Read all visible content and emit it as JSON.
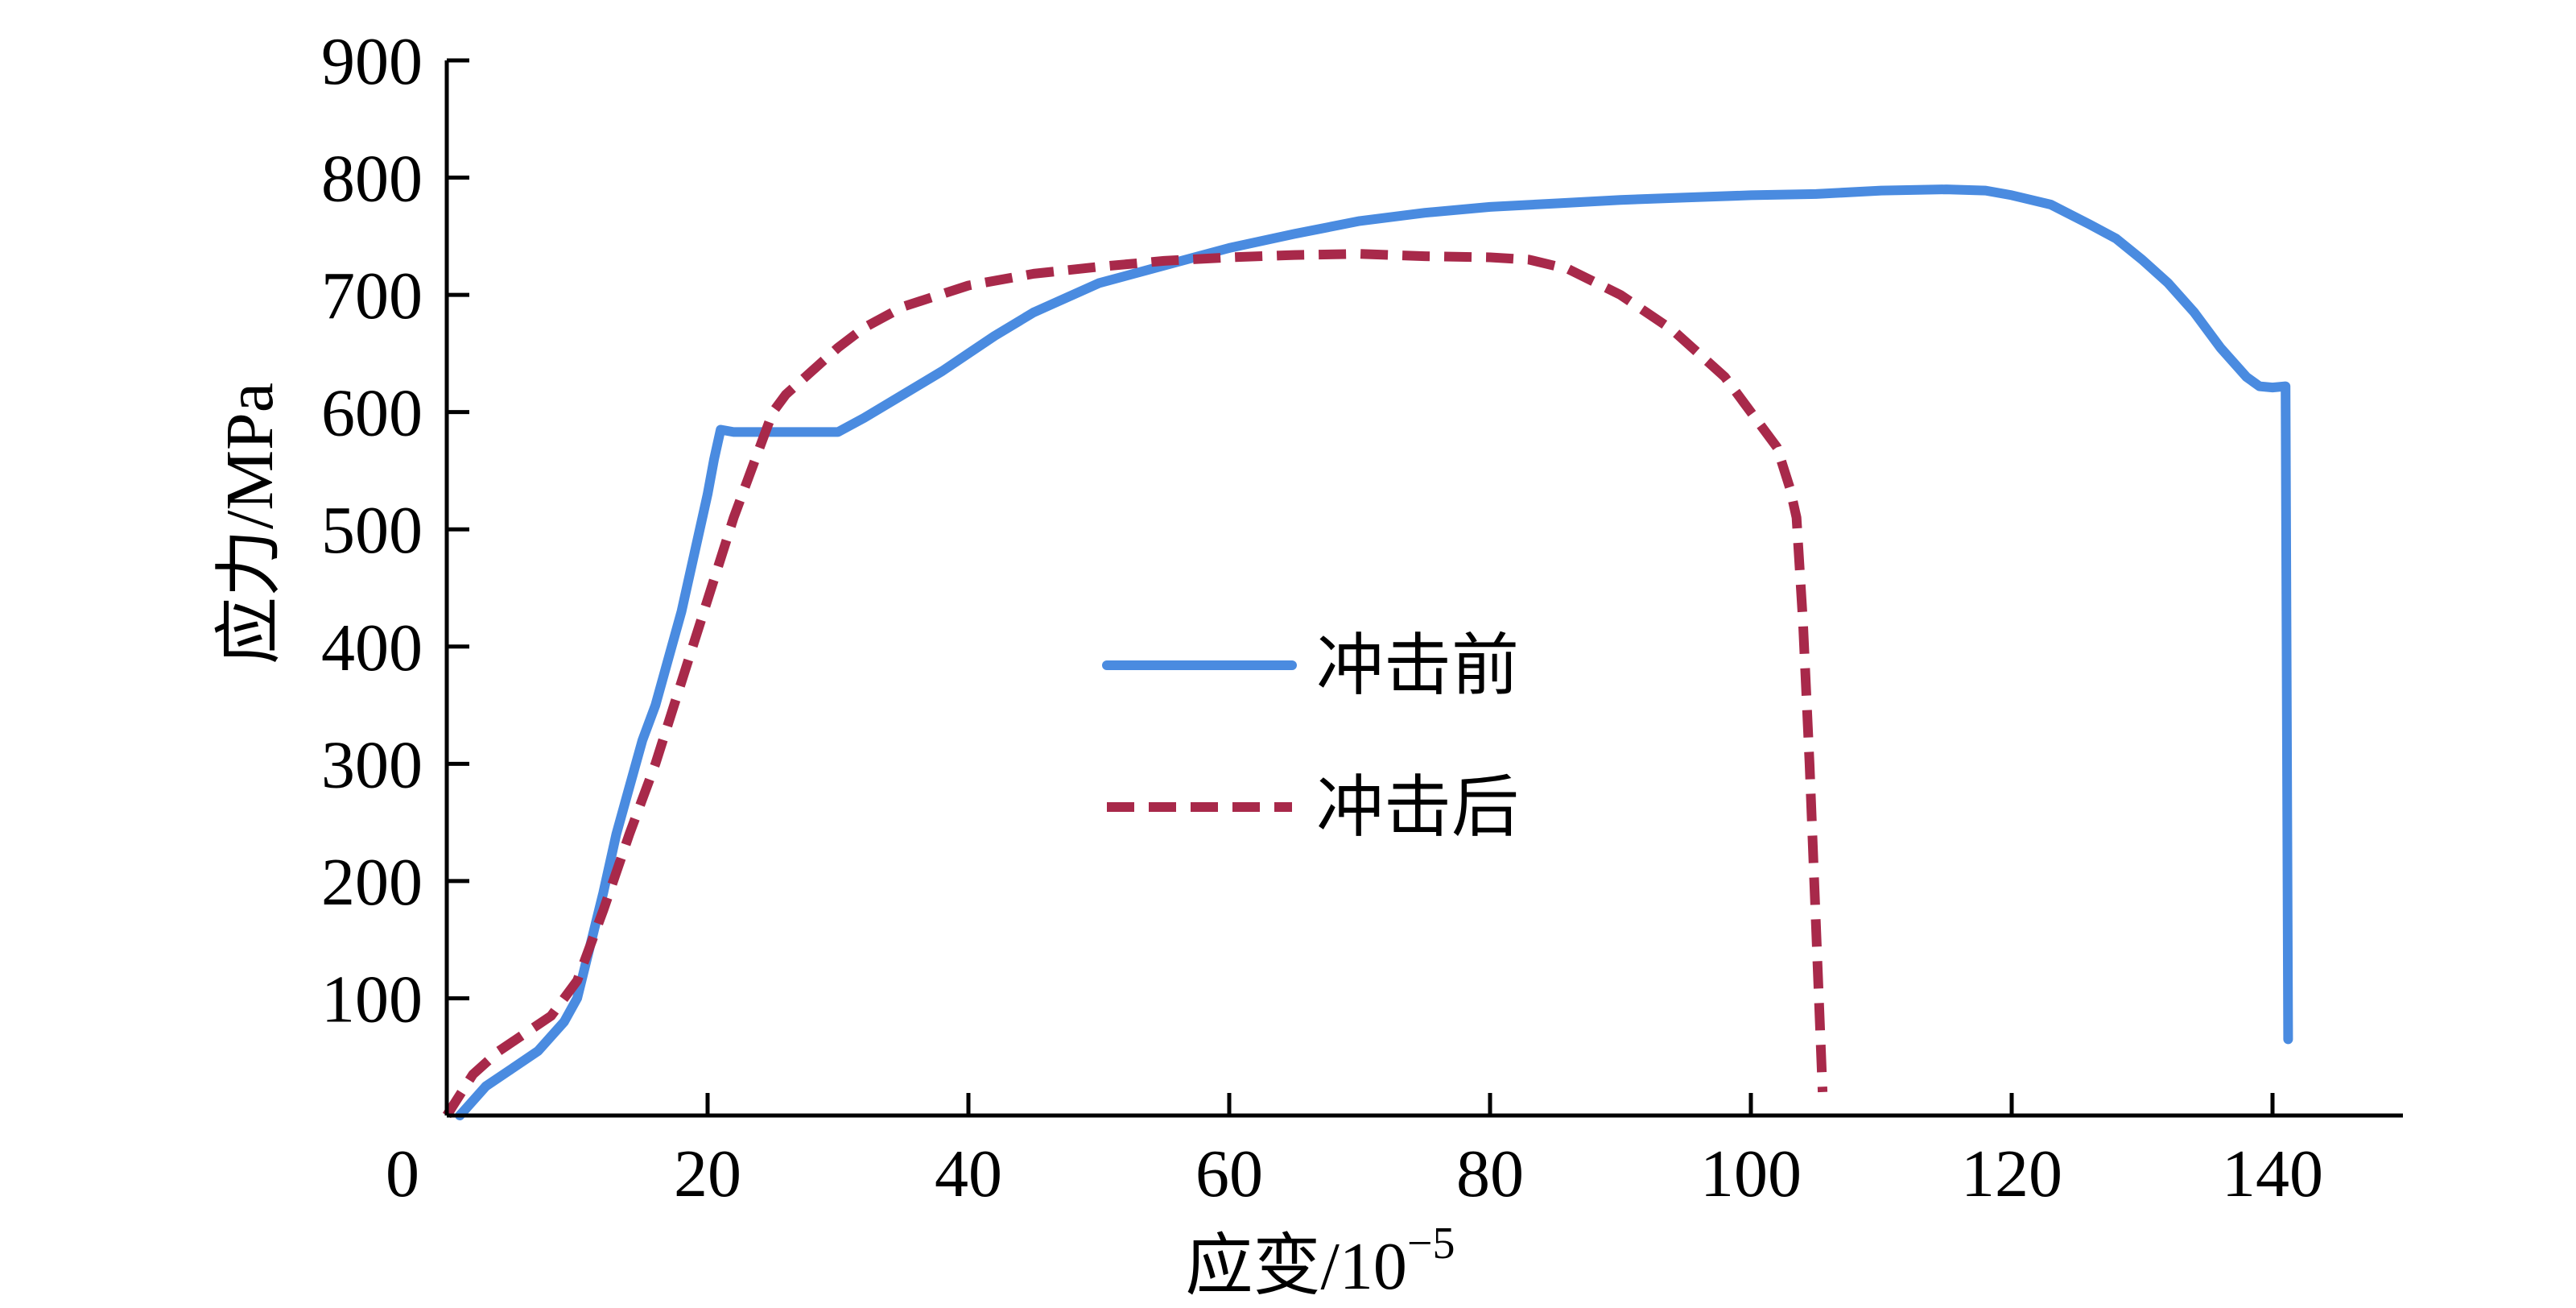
{
  "chart_data": {
    "type": "line",
    "title": "",
    "xlabel": "应变/10",
    "xlabel_exp": "−5",
    "ylabel": "应力/MPa",
    "xlim": [
      0,
      150
    ],
    "ylim": [
      0,
      900
    ],
    "x_ticks": [
      0,
      20,
      40,
      60,
      80,
      100,
      120,
      140
    ],
    "y_ticks": [
      100,
      200,
      300,
      400,
      500,
      600,
      700,
      800,
      900
    ],
    "x_tick_labels": [
      "0",
      "20",
      "40",
      "60",
      "80",
      "100",
      "120",
      "140"
    ],
    "y_tick_labels": [
      "100",
      "200",
      "300",
      "400",
      "500",
      "600",
      "700",
      "800",
      "900"
    ],
    "grid": false,
    "legend_position": "center",
    "series": [
      {
        "name": "冲击前",
        "color": "#4A8BE0",
        "dash": "solid",
        "points": [
          [
            1,
            0
          ],
          [
            3,
            25
          ],
          [
            5,
            40
          ],
          [
            7,
            55
          ],
          [
            9,
            80
          ],
          [
            10,
            100
          ],
          [
            11,
            145
          ],
          [
            12,
            190
          ],
          [
            13,
            240
          ],
          [
            14,
            280
          ],
          [
            15,
            320
          ],
          [
            16,
            350
          ],
          [
            17,
            390
          ],
          [
            18,
            430
          ],
          [
            19,
            480
          ],
          [
            20,
            530
          ],
          [
            20.5,
            560
          ],
          [
            21,
            585
          ],
          [
            22,
            583
          ],
          [
            25,
            583
          ],
          [
            29,
            583
          ],
          [
            30,
            583
          ],
          [
            32,
            595
          ],
          [
            35,
            615
          ],
          [
            38,
            635
          ],
          [
            40,
            650
          ],
          [
            42,
            665
          ],
          [
            45,
            685
          ],
          [
            48,
            700
          ],
          [
            50,
            710
          ],
          [
            55,
            725
          ],
          [
            60,
            740
          ],
          [
            65,
            752
          ],
          [
            70,
            763
          ],
          [
            75,
            770
          ],
          [
            80,
            775
          ],
          [
            85,
            778
          ],
          [
            90,
            781
          ],
          [
            95,
            783
          ],
          [
            100,
            785
          ],
          [
            105,
            786
          ],
          [
            110,
            789
          ],
          [
            115,
            790
          ],
          [
            118,
            789
          ],
          [
            120,
            785
          ],
          [
            123,
            777
          ],
          [
            126,
            760
          ],
          [
            128,
            748
          ],
          [
            130,
            730
          ],
          [
            132,
            710
          ],
          [
            134,
            685
          ],
          [
            136,
            655
          ],
          [
            138,
            630
          ],
          [
            139,
            622
          ],
          [
            140,
            621
          ],
          [
            141,
            622
          ],
          [
            141.2,
            65
          ]
        ]
      },
      {
        "name": "冲击后",
        "color": "#A8294A",
        "dash": "dashed",
        "points": [
          [
            0,
            0
          ],
          [
            2,
            35
          ],
          [
            4,
            55
          ],
          [
            6,
            70
          ],
          [
            8,
            85
          ],
          [
            10,
            115
          ],
          [
            12,
            175
          ],
          [
            14,
            240
          ],
          [
            16,
            300
          ],
          [
            18,
            370
          ],
          [
            20,
            440
          ],
          [
            22,
            510
          ],
          [
            24,
            570
          ],
          [
            25,
            600
          ],
          [
            26,
            615
          ],
          [
            28,
            635
          ],
          [
            30,
            655
          ],
          [
            32,
            672
          ],
          [
            35,
            690
          ],
          [
            40,
            708
          ],
          [
            45,
            718
          ],
          [
            50,
            724
          ],
          [
            55,
            729
          ],
          [
            60,
            732
          ],
          [
            65,
            734
          ],
          [
            70,
            735
          ],
          [
            75,
            733
          ],
          [
            80,
            732
          ],
          [
            83,
            730
          ],
          [
            86,
            722
          ],
          [
            90,
            700
          ],
          [
            94,
            670
          ],
          [
            98,
            630
          ],
          [
            100,
            600
          ],
          [
            102,
            570
          ],
          [
            103,
            535
          ],
          [
            103.5,
            510
          ],
          [
            104,
            420
          ],
          [
            104.5,
            300
          ],
          [
            105,
            160
          ],
          [
            105.5,
            20
          ]
        ]
      }
    ]
  }
}
